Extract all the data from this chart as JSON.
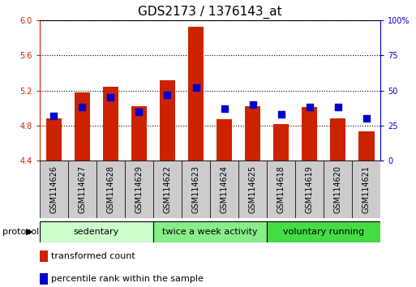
{
  "title": "GDS2173 / 1376143_at",
  "samples": [
    "GSM114626",
    "GSM114627",
    "GSM114628",
    "GSM114629",
    "GSM114622",
    "GSM114623",
    "GSM114624",
    "GSM114625",
    "GSM114618",
    "GSM114619",
    "GSM114620",
    "GSM114621"
  ],
  "transformed_counts": [
    4.88,
    5.18,
    5.24,
    5.02,
    5.32,
    5.92,
    4.87,
    5.02,
    4.82,
    5.01,
    4.88,
    4.73
  ],
  "percentile_ranks": [
    32,
    38,
    45,
    35,
    47,
    52,
    37,
    40,
    33,
    38,
    38,
    30
  ],
  "ylim_left": [
    4.4,
    6.0
  ],
  "ylim_right": [
    0,
    100
  ],
  "yticks_left": [
    4.4,
    4.8,
    5.2,
    5.6,
    6.0
  ],
  "yticks_right": [
    0,
    25,
    50,
    75,
    100
  ],
  "bar_color": "#cc2200",
  "dot_color": "#0000cc",
  "bar_width": 0.55,
  "dot_size": 30,
  "groups": [
    {
      "label": "sedentary",
      "start": 0,
      "end": 4,
      "color": "#ccffcc"
    },
    {
      "label": "twice a week activity",
      "start": 4,
      "end": 8,
      "color": "#88ee88"
    },
    {
      "label": "voluntary running",
      "start": 8,
      "end": 12,
      "color": "#44dd44"
    }
  ],
  "protocol_label": "protocol",
  "legend_items": [
    {
      "color": "#cc2200",
      "label": "transformed count"
    },
    {
      "color": "#0000cc",
      "label": "percentile rank within the sample"
    }
  ],
  "background_color": "#ffffff",
  "plot_bg_color": "#ffffff",
  "label_color_left": "#cc2200",
  "label_color_right": "#0000cc",
  "xtick_bg_color": "#cccccc",
  "title_fontsize": 11,
  "tick_fontsize": 7,
  "xtick_fontsize": 7
}
